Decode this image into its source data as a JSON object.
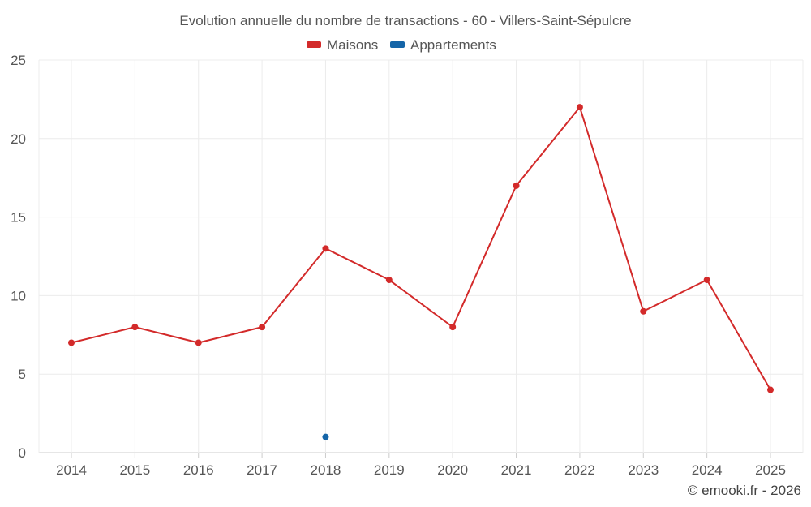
{
  "chart_data": {
    "type": "line",
    "title": "Evolution annuelle du nombre de transactions - 60 - Villers-Saint-Sépulcre",
    "xlabel": "",
    "ylabel": "",
    "categories": [
      "2014",
      "2015",
      "2016",
      "2017",
      "2018",
      "2019",
      "2020",
      "2021",
      "2022",
      "2023",
      "2024",
      "2025"
    ],
    "ylim": [
      0,
      25
    ],
    "yticks": [
      0,
      5,
      10,
      15,
      20,
      25
    ],
    "grid": true,
    "legend_position": "top-center",
    "series": [
      {
        "name": "Maisons",
        "color": "#d32a2a",
        "values": [
          7,
          8,
          7,
          8,
          13,
          11,
          8,
          17,
          22,
          9,
          11,
          4
        ]
      },
      {
        "name": "Appartements",
        "color": "#1565a8",
        "values": [
          null,
          null,
          null,
          null,
          1,
          null,
          null,
          null,
          null,
          null,
          null,
          null
        ]
      }
    ]
  },
  "credit": "© emooki.fr - 2026"
}
